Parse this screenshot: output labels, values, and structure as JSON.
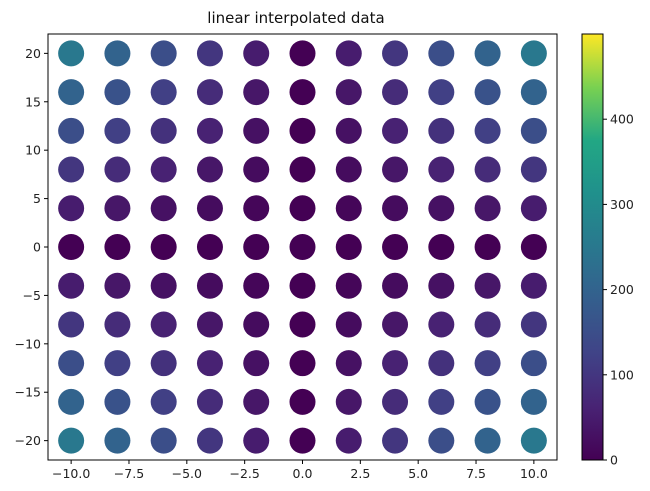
{
  "chart_data": {
    "type": "scatter",
    "title": "linear interpolated data",
    "xlabel": "",
    "ylabel": "",
    "xlim": [
      -11,
      11
    ],
    "ylim": [
      -22,
      22
    ],
    "x_ticks": [
      -10.0,
      -7.5,
      -5.0,
      -2.5,
      0.0,
      2.5,
      5.0,
      7.5,
      10.0
    ],
    "x_tick_labels": [
      "−10.0",
      "−7.5",
      "−5.0",
      "−2.5",
      "0.0",
      "2.5",
      "5.0",
      "7.5",
      "10.0"
    ],
    "y_ticks": [
      -20,
      -15,
      -10,
      -5,
      0,
      5,
      10,
      15,
      20
    ],
    "y_tick_labels": [
      "−20",
      "−15",
      "−10",
      "−5",
      "0",
      "5",
      "10",
      "15",
      "20"
    ],
    "x": [
      -10,
      -8,
      -6,
      -4,
      -2,
      0,
      2,
      4,
      6,
      8,
      10
    ],
    "y": [
      -20,
      -16,
      -12,
      -8,
      -4,
      0,
      4,
      8,
      12,
      16,
      20
    ],
    "value_rule": "c = |x| * |y| * 1.25",
    "grid": false,
    "colormap": "viridis",
    "colorbar": {
      "range": [
        0,
        500
      ],
      "ticks": [
        0,
        100,
        200,
        300,
        400
      ],
      "tick_labels": [
        "0",
        "100",
        "200",
        "300",
        "400"
      ]
    }
  }
}
